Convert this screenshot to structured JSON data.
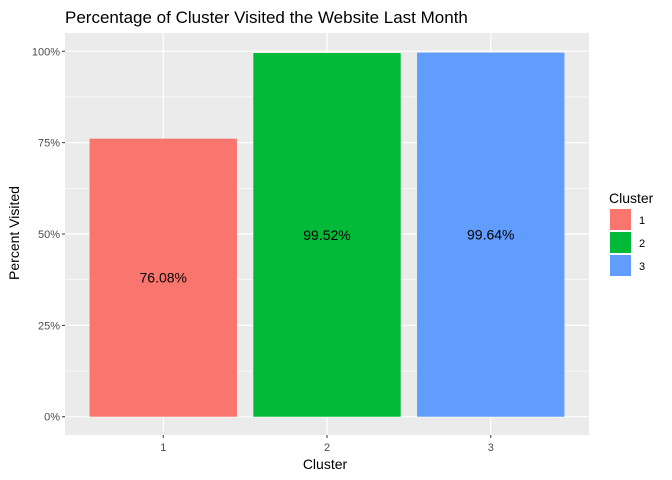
{
  "chart_data": {
    "type": "bar",
    "title": "Percentage of Cluster Visited the Website Last Month",
    "xlabel": "Cluster",
    "ylabel": "Percent Visited",
    "categories": [
      "1",
      "2",
      "3"
    ],
    "values": [
      76.08,
      99.52,
      99.64
    ],
    "data_labels": [
      "76.08%",
      "99.52%",
      "99.64%"
    ],
    "colors": [
      "#F8766D",
      "#00BA38",
      "#619CFF"
    ],
    "ylim": [
      0,
      100
    ],
    "y_ticks": [
      0,
      25,
      50,
      75,
      100
    ],
    "y_tick_labels": [
      "0%",
      "25%",
      "50%",
      "75%",
      "100%"
    ],
    "grid": true,
    "panel_background": "#EBEBEB",
    "legend": {
      "title": "Cluster",
      "position": "right",
      "items": [
        "1",
        "2",
        "3"
      ]
    }
  }
}
